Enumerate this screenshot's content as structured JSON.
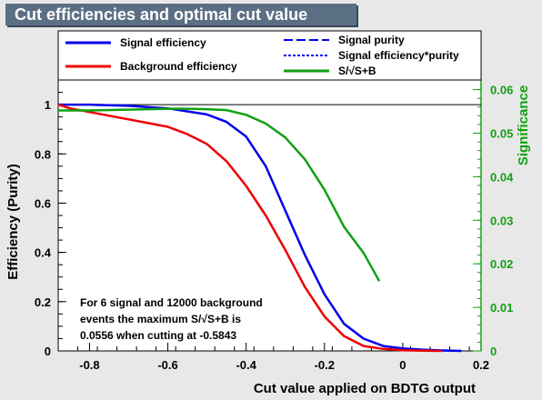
{
  "title": "Cut efficiencies and optimal cut value",
  "chart_data": {
    "type": "line",
    "xlabel": "Cut value applied on BDTG output",
    "ylabel": "Efficiency (Purity)",
    "y2label": "Significance",
    "xlim": [
      -0.88,
      0.2
    ],
    "ylim": [
      0,
      1.1
    ],
    "y2lim": [
      0,
      0.0622
    ],
    "x_ticks": [
      "-0.8",
      "-0.6",
      "-0.4",
      "-0.2",
      "0",
      "0.2"
    ],
    "x_tick_values": [
      -0.8,
      -0.6,
      -0.4,
      -0.2,
      0,
      0.2
    ],
    "y_ticks": [
      "0",
      "0.2",
      "0.4",
      "0.6",
      "0.8",
      "1"
    ],
    "y_tick_values": [
      0,
      0.2,
      0.4,
      0.6,
      0.8,
      1
    ],
    "y2_ticks": [
      "0",
      "0.01",
      "0.02",
      "0.03",
      "0.04",
      "0.05",
      "0.06"
    ],
    "y2_tick_values": [
      0,
      0.01,
      0.02,
      0.03,
      0.04,
      0.05,
      0.06
    ],
    "reference_line_y": 1,
    "legend": [
      {
        "name": "Signal efficiency",
        "color": "#0000ee",
        "style": "solid"
      },
      {
        "name": "Background efficiency",
        "color": "#ee0000",
        "style": "solid"
      },
      {
        "name": "Signal purity",
        "color": "#0000ee",
        "style": "dashed"
      },
      {
        "name": "Signal efficiency*purity",
        "color": "#0000ee",
        "style": "dotted"
      },
      {
        "name": "S/√S+B",
        "color": "#12a012",
        "style": "solid"
      }
    ],
    "series": [
      {
        "name": "Signal efficiency",
        "color": "#0000ee",
        "axis": "left",
        "x": [
          -0.88,
          -0.8,
          -0.7,
          -0.6,
          -0.5,
          -0.45,
          -0.4,
          -0.35,
          -0.3,
          -0.25,
          -0.2,
          -0.15,
          -0.1,
          -0.05,
          0.0,
          0.05,
          0.1,
          0.15
        ],
        "y": [
          1.0,
          1.0,
          0.995,
          0.985,
          0.96,
          0.93,
          0.87,
          0.75,
          0.57,
          0.39,
          0.23,
          0.11,
          0.05,
          0.02,
          0.01,
          0.005,
          0.002,
          0.0
        ]
      },
      {
        "name": "Background efficiency",
        "color": "#ee0000",
        "axis": "left",
        "x": [
          -0.88,
          -0.85,
          -0.8,
          -0.75,
          -0.7,
          -0.65,
          -0.6,
          -0.55,
          -0.5,
          -0.45,
          -0.4,
          -0.35,
          -0.3,
          -0.25,
          -0.2,
          -0.15,
          -0.1,
          -0.05,
          0.0,
          0.05,
          0.1
        ],
        "y": [
          1.0,
          0.985,
          0.97,
          0.955,
          0.94,
          0.925,
          0.91,
          0.88,
          0.84,
          0.77,
          0.67,
          0.55,
          0.41,
          0.26,
          0.14,
          0.06,
          0.02,
          0.008,
          0.003,
          0.001,
          0.0
        ]
      },
      {
        "name": "S/√S+B",
        "color": "#12a012",
        "axis": "right",
        "x": [
          -0.88,
          -0.8,
          -0.7,
          -0.6,
          -0.55,
          -0.5,
          -0.45,
          -0.4,
          -0.35,
          -0.3,
          -0.25,
          -0.2,
          -0.15,
          -0.1,
          -0.06
        ],
        "y": [
          0.0552,
          0.0552,
          0.0554,
          0.0556,
          0.0556,
          0.0555,
          0.0553,
          0.0542,
          0.0522,
          0.049,
          0.044,
          0.037,
          0.0285,
          0.0225,
          0.016
        ]
      }
    ],
    "annotation": [
      "For 6 signal and 12000 background",
      "events the maximum S/√S+B is",
      "0.0556 when cutting at -0.5843"
    ]
  }
}
